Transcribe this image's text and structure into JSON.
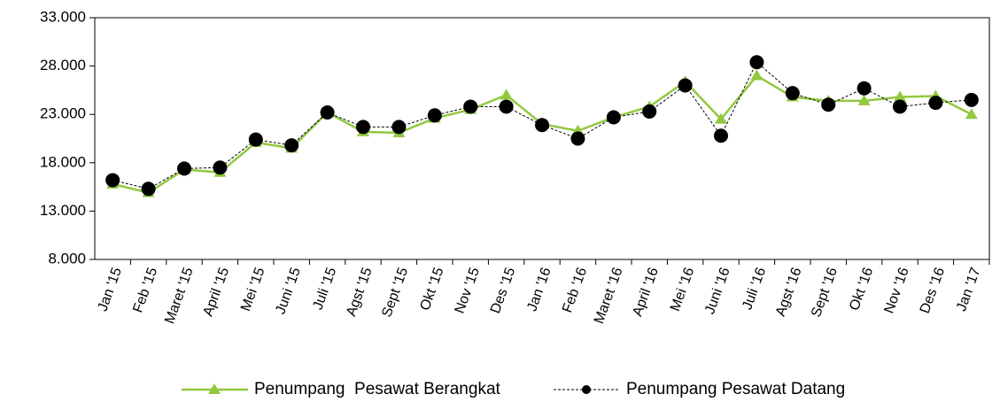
{
  "chart_data": {
    "type": "line",
    "categories": [
      "Jan '15",
      "Feb '15",
      "Maret '15",
      "April '15",
      "Mei '15",
      "Juni '15",
      "Juli '15",
      "Agst '15",
      "Sept '15",
      "Okt '15",
      "Nov '15",
      "Des '15",
      "Jan '16",
      "Feb '16",
      "Maret '16",
      "April '16",
      "Mei '16",
      "Juni '16",
      "Juli '16",
      "Agst '16",
      "Sept '16",
      "Okt '16",
      "Nov '16",
      "Des '16",
      "Jan '17"
    ],
    "series": [
      {
        "name": "Penumpang  Pesawat Berangkat",
        "color": "#92c83e",
        "marker": "triangle",
        "values": [
          15800,
          14900,
          17300,
          17000,
          20100,
          19500,
          23200,
          21200,
          21100,
          22600,
          23500,
          25000,
          22000,
          21300,
          22700,
          23800,
          26400,
          22500,
          27000,
          24800,
          24400,
          24400,
          24800,
          24900,
          23000
        ]
      },
      {
        "name": "Penumpang Pesawat Datang",
        "color": "#000000",
        "marker": "circle",
        "values": [
          16200,
          15300,
          17400,
          17500,
          20400,
          19800,
          23200,
          21700,
          21700,
          22900,
          23800,
          23800,
          21900,
          20500,
          22700,
          23300,
          26000,
          20800,
          28400,
          25200,
          24000,
          25700,
          23800,
          24200,
          24500
        ]
      }
    ],
    "ylim": [
      8000,
      33000
    ],
    "yticks": [
      {
        "value": 8000,
        "label": "8.000"
      },
      {
        "value": 13000,
        "label": "13.000"
      },
      {
        "value": 18000,
        "label": "18.000"
      },
      {
        "value": 23000,
        "label": "23.000"
      },
      {
        "value": 28000,
        "label": "28.000"
      },
      {
        "value": 33000,
        "label": "33.000"
      }
    ],
    "legend": "bottom"
  }
}
